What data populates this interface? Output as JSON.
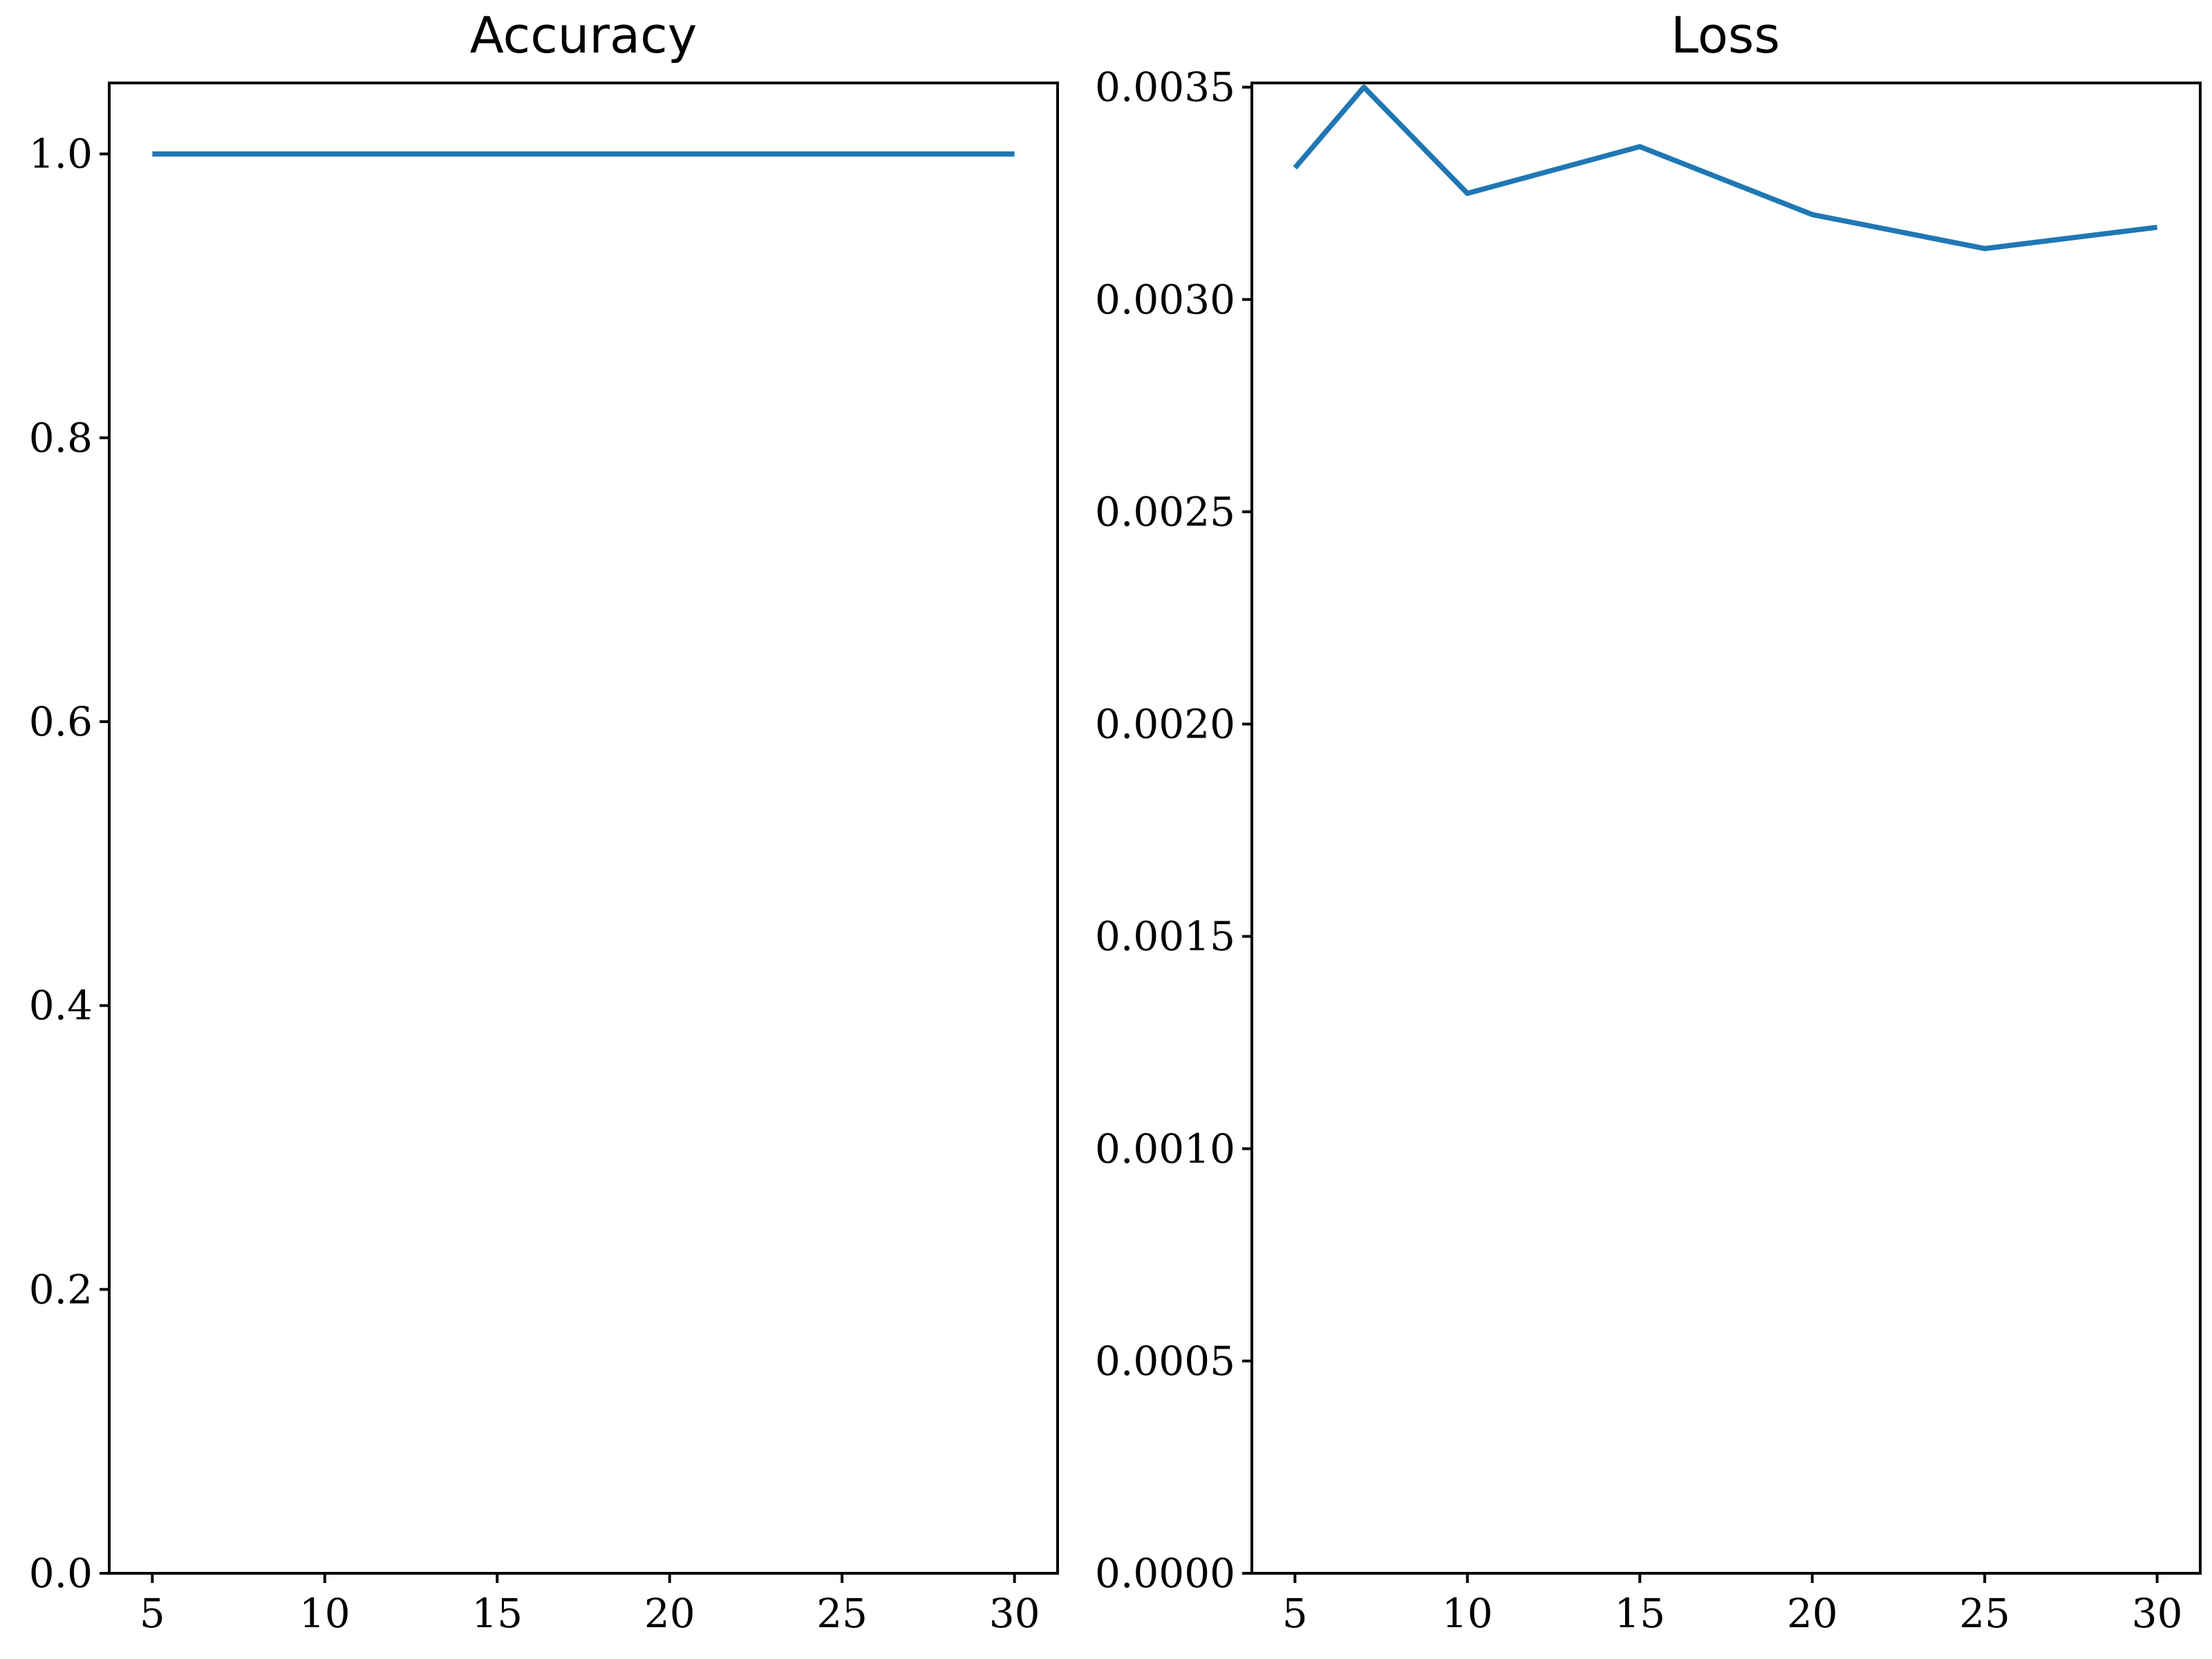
{
  "chart_data": [
    {
      "type": "line",
      "title": "Accuracy",
      "xlabel": "",
      "ylabel": "",
      "x": [
        5,
        10,
        15,
        20,
        25,
        30
      ],
      "series": [
        {
          "values": [
            1.0,
            1.0,
            1.0,
            1.0,
            1.0,
            1.0
          ],
          "color": "#1f77b4"
        }
      ],
      "xlim": [
        3.75,
        31.25
      ],
      "ylim": [
        0.0,
        1.05
      ],
      "xticks": [
        5,
        10,
        15,
        20,
        25,
        30
      ],
      "xtick_labels": [
        "5",
        "10",
        "15",
        "20",
        "25",
        "30"
      ],
      "yticks": [
        0.0,
        0.2,
        0.4,
        0.6,
        0.8,
        1.0
      ],
      "ytick_labels": [
        "0.0",
        "0.2",
        "0.4",
        "0.6",
        "0.8",
        "1.0"
      ],
      "grid": false,
      "legend": "none"
    },
    {
      "type": "line",
      "title": "Loss",
      "xlabel": "",
      "ylabel": "",
      "x": [
        5,
        7,
        10,
        15,
        20,
        25,
        30
      ],
      "series": [
        {
          "values": [
            0.00331,
            0.0035,
            0.00325,
            0.00336,
            0.0032,
            0.00312,
            0.00317
          ],
          "color": "#1f77b4"
        }
      ],
      "xlim": [
        3.75,
        31.25
      ],
      "ylim": [
        0.0,
        0.00351
      ],
      "xticks": [
        5,
        10,
        15,
        20,
        25,
        30
      ],
      "xtick_labels": [
        "5",
        "10",
        "15",
        "20",
        "25",
        "30"
      ],
      "yticks": [
        0.0,
        0.0005,
        0.001,
        0.0015,
        0.002,
        0.0025,
        0.003,
        0.0035
      ],
      "ytick_labels": [
        "0.0000",
        "0.0005",
        "0.0010",
        "0.0015",
        "0.0020",
        "0.0025",
        "0.0030",
        "0.0035"
      ],
      "grid": false,
      "legend": "none"
    }
  ]
}
